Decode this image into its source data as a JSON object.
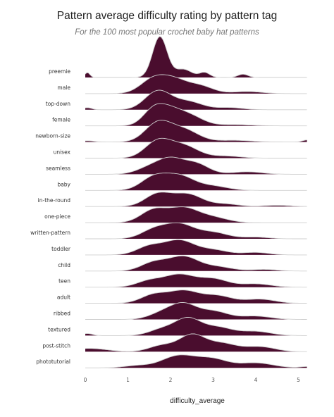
{
  "chart_data": {
    "type": "ridgeline",
    "title": "Pattern average difficulty rating by pattern tag",
    "subtitle": "For the 100 most popular crochet baby hat patterns",
    "xlabel": "difficulty_average",
    "xlim": [
      0,
      5.2
    ],
    "xticks": [
      0,
      1,
      2,
      3,
      4,
      5
    ],
    "fill_color": "#4a0d2e",
    "line_color": "#cfcfcf",
    "series": [
      {
        "name": "preemie",
        "peaks": [
          [
            0.05,
            0.12,
            0.06
          ],
          [
            1.75,
            1.0,
            0.17
          ],
          [
            2.3,
            0.2,
            0.2
          ],
          [
            2.8,
            0.12,
            0.12
          ],
          [
            3.7,
            0.08,
            0.12
          ]
        ]
      },
      {
        "name": "male",
        "peaks": [
          [
            1.6,
            0.35,
            0.3
          ],
          [
            2.1,
            0.3,
            0.3
          ],
          [
            2.7,
            0.18,
            0.3
          ],
          [
            3.8,
            0.05,
            0.35
          ]
        ]
      },
      {
        "name": "top-down",
        "peaks": [
          [
            0.05,
            0.05,
            0.1
          ],
          [
            1.7,
            0.45,
            0.3
          ],
          [
            2.4,
            0.2,
            0.35
          ],
          [
            3.4,
            0.05,
            0.3
          ]
        ]
      },
      {
        "name": "female",
        "peaks": [
          [
            1.6,
            0.35,
            0.25
          ],
          [
            2.0,
            0.35,
            0.3
          ],
          [
            2.5,
            0.2,
            0.3
          ],
          [
            3.5,
            0.03,
            0.4
          ]
        ]
      },
      {
        "name": "newborn-size",
        "peaks": [
          [
            0.05,
            0.03,
            0.15
          ],
          [
            1.7,
            0.45,
            0.3
          ],
          [
            2.3,
            0.3,
            0.35
          ],
          [
            3.5,
            0.04,
            0.4
          ],
          [
            5.2,
            0.05,
            0.1
          ]
        ]
      },
      {
        "name": "unisex",
        "peaks": [
          [
            1.7,
            0.4,
            0.3
          ],
          [
            2.3,
            0.3,
            0.35
          ],
          [
            3.3,
            0.05,
            0.35
          ]
        ]
      },
      {
        "name": "seamless",
        "peaks": [
          [
            1.5,
            0.15,
            0.3
          ],
          [
            2.0,
            0.35,
            0.3
          ],
          [
            2.6,
            0.25,
            0.3
          ],
          [
            3.8,
            0.06,
            0.35
          ]
        ]
      },
      {
        "name": "baby",
        "peaks": [
          [
            1.6,
            0.3,
            0.3
          ],
          [
            2.2,
            0.35,
            0.35
          ],
          [
            3.0,
            0.1,
            0.35
          ]
        ]
      },
      {
        "name": "in-the-round",
        "peaks": [
          [
            1.7,
            0.3,
            0.3
          ],
          [
            2.4,
            0.3,
            0.35
          ],
          [
            3.3,
            0.06,
            0.3
          ],
          [
            4.5,
            0.03,
            0.3
          ]
        ]
      },
      {
        "name": "one-piece",
        "peaks": [
          [
            1.6,
            0.3,
            0.3
          ],
          [
            2.3,
            0.35,
            0.35
          ],
          [
            3.0,
            0.12,
            0.35
          ]
        ]
      },
      {
        "name": "written-pattern",
        "peaks": [
          [
            1.6,
            0.2,
            0.3
          ],
          [
            2.2,
            0.35,
            0.35
          ],
          [
            3.0,
            0.15,
            0.35
          ],
          [
            4.0,
            0.04,
            0.3
          ]
        ]
      },
      {
        "name": "toddler",
        "peaks": [
          [
            1.5,
            0.2,
            0.3
          ],
          [
            2.2,
            0.35,
            0.35
          ],
          [
            3.0,
            0.12,
            0.35
          ],
          [
            4.0,
            0.06,
            0.3
          ]
        ]
      },
      {
        "name": "child",
        "peaks": [
          [
            1.6,
            0.2,
            0.3
          ],
          [
            2.3,
            0.35,
            0.35
          ],
          [
            3.1,
            0.1,
            0.35
          ],
          [
            4.2,
            0.04,
            0.3
          ]
        ]
      },
      {
        "name": "teen",
        "peaks": [
          [
            1.5,
            0.15,
            0.3
          ],
          [
            2.2,
            0.3,
            0.35
          ],
          [
            3.0,
            0.2,
            0.35
          ],
          [
            4.0,
            0.08,
            0.35
          ]
        ]
      },
      {
        "name": "adult",
        "peaks": [
          [
            1.6,
            0.2,
            0.3
          ],
          [
            2.3,
            0.3,
            0.35
          ],
          [
            3.1,
            0.18,
            0.35
          ],
          [
            4.1,
            0.1,
            0.35
          ]
        ]
      },
      {
        "name": "ribbed",
        "peaks": [
          [
            1.8,
            0.15,
            0.3
          ],
          [
            2.3,
            0.35,
            0.3
          ],
          [
            3.0,
            0.2,
            0.35
          ],
          [
            4.0,
            0.08,
            0.35
          ]
        ]
      },
      {
        "name": "textured",
        "peaks": [
          [
            0.05,
            0.05,
            0.12
          ],
          [
            1.8,
            0.15,
            0.3
          ],
          [
            2.4,
            0.4,
            0.3
          ],
          [
            3.1,
            0.2,
            0.35
          ],
          [
            4.0,
            0.1,
            0.35
          ]
        ]
      },
      {
        "name": "post-stitch",
        "peaks": [
          [
            0.1,
            0.08,
            0.4
          ],
          [
            1.8,
            0.15,
            0.3
          ],
          [
            2.5,
            0.4,
            0.3
          ],
          [
            3.2,
            0.2,
            0.35
          ],
          [
            4.1,
            0.12,
            0.35
          ]
        ]
      },
      {
        "name": "phototutorial",
        "peaks": [
          [
            1.2,
            0.05,
            0.3
          ],
          [
            2.2,
            0.3,
            0.4
          ],
          [
            3.0,
            0.2,
            0.35
          ],
          [
            4.0,
            0.12,
            0.4
          ],
          [
            5.2,
            0.03,
            0.15
          ]
        ]
      }
    ]
  }
}
